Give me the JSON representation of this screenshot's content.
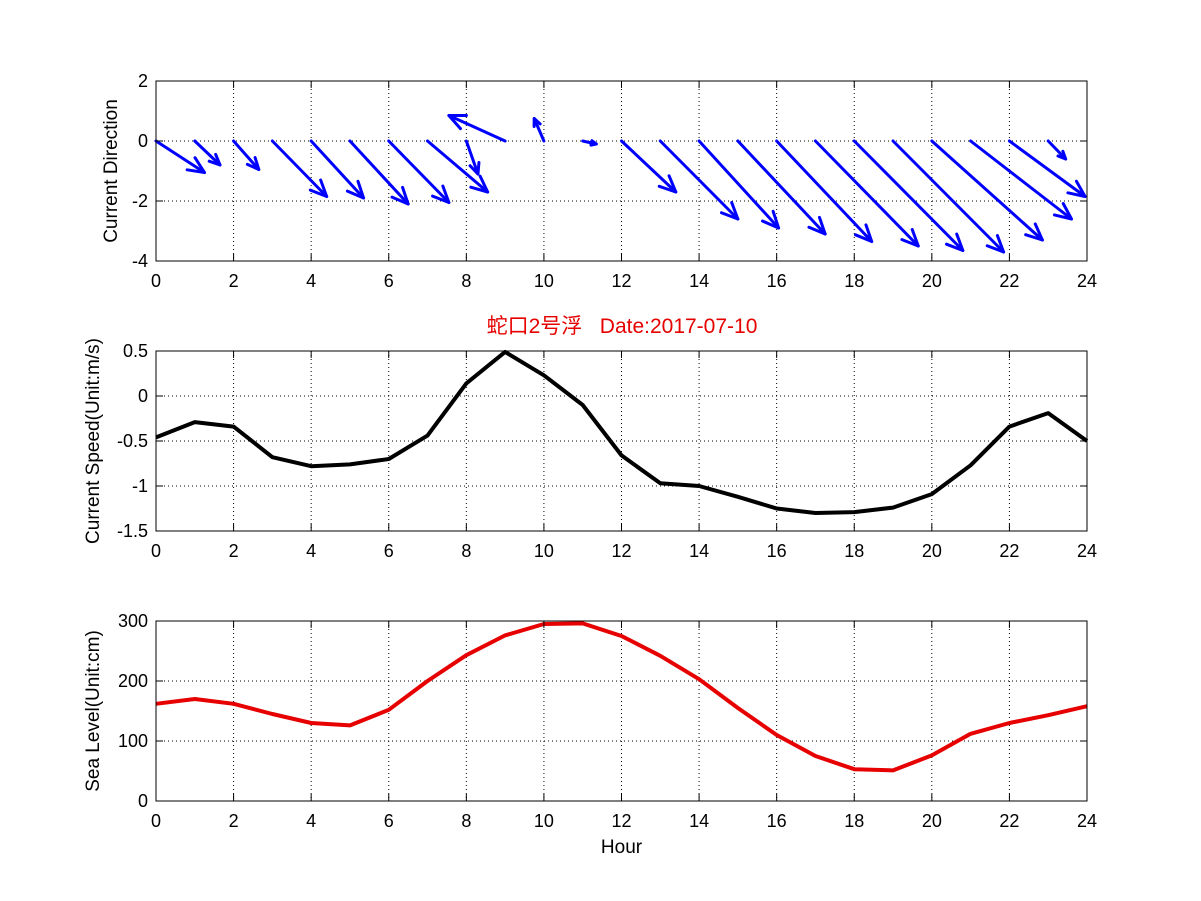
{
  "title": "蛇口2号浮   Date:2017-07-10",
  "colors": {
    "direction": "#0000ff",
    "speed": "#000000",
    "level": "#e60000",
    "title": "#e60000",
    "grid": "#000000"
  },
  "chart_data": [
    {
      "type": "quiver",
      "name": "direction",
      "ylabel": "Current Direction",
      "xlabel": "",
      "xlim": [
        0,
        24
      ],
      "ylim": [
        -4,
        2
      ],
      "xticks": [
        0,
        2,
        4,
        6,
        8,
        10,
        12,
        14,
        16,
        18,
        20,
        22,
        24
      ],
      "yticks": [
        -4,
        -2,
        0,
        2
      ],
      "grid": true,
      "arrows": [
        {
          "x": 0,
          "y": 0,
          "u": 1.25,
          "v": -1.05
        },
        {
          "x": 1,
          "y": 0,
          "u": 0.65,
          "v": -0.8
        },
        {
          "x": 2,
          "y": 0,
          "u": 0.65,
          "v": -0.95
        },
        {
          "x": 3,
          "y": 0,
          "u": 1.4,
          "v": -1.85
        },
        {
          "x": 4,
          "y": 0,
          "u": 1.35,
          "v": -1.9
        },
        {
          "x": 5,
          "y": 0,
          "u": 1.5,
          "v": -2.1
        },
        {
          "x": 6,
          "y": 0,
          "u": 1.55,
          "v": -2.05
        },
        {
          "x": 7,
          "y": 0,
          "u": 1.55,
          "v": -1.7
        },
        {
          "x": 8,
          "y": 0,
          "u": 0.3,
          "v": -1.1
        },
        {
          "x": 9,
          "y": 0,
          "u": -1.45,
          "v": 0.85
        },
        {
          "x": 10,
          "y": 0,
          "u": -0.25,
          "v": 0.75
        },
        {
          "x": 11,
          "y": 0,
          "u": 0.35,
          "v": -0.1
        },
        {
          "x": 12,
          "y": 0,
          "u": 1.4,
          "v": -1.7
        },
        {
          "x": 13,
          "y": 0,
          "u": 2.0,
          "v": -2.6
        },
        {
          "x": 14,
          "y": 0,
          "u": 2.05,
          "v": -2.9
        },
        {
          "x": 15,
          "y": 0,
          "u": 2.25,
          "v": -3.1
        },
        {
          "x": 16,
          "y": 0,
          "u": 2.45,
          "v": -3.35
        },
        {
          "x": 17,
          "y": 0,
          "u": 2.65,
          "v": -3.5
        },
        {
          "x": 18,
          "y": 0,
          "u": 2.8,
          "v": -3.65
        },
        {
          "x": 19,
          "y": 0,
          "u": 2.85,
          "v": -3.7
        },
        {
          "x": 20,
          "y": 0,
          "u": 2.85,
          "v": -3.3
        },
        {
          "x": 21,
          "y": 0,
          "u": 2.6,
          "v": -2.6
        },
        {
          "x": 22,
          "y": 0,
          "u": 1.95,
          "v": -1.85
        },
        {
          "x": 23,
          "y": 0,
          "u": 0.45,
          "v": -0.6
        }
      ]
    },
    {
      "type": "line",
      "name": "speed",
      "ylabel": "Current Speed(Unit:m/s)",
      "xlabel": "",
      "xlim": [
        0,
        24
      ],
      "ylim": [
        -1.5,
        0.5
      ],
      "xticks": [
        0,
        2,
        4,
        6,
        8,
        10,
        12,
        14,
        16,
        18,
        20,
        22,
        24
      ],
      "yticks": [
        -1.5,
        -1,
        -0.5,
        0,
        0.5
      ],
      "ytick_labels": [
        "-1.5",
        "-1",
        "-0.5",
        "0",
        "0.5"
      ],
      "grid": true,
      "x": [
        0,
        1,
        2,
        3,
        4,
        5,
        6,
        7,
        8,
        9,
        10,
        11,
        12,
        13,
        14,
        15,
        16,
        17,
        18,
        19,
        20,
        21,
        22,
        23,
        24
      ],
      "y": [
        -0.46,
        -0.29,
        -0.34,
        -0.68,
        -0.78,
        -0.76,
        -0.7,
        -0.44,
        0.14,
        0.49,
        0.23,
        -0.1,
        -0.66,
        -0.97,
        -1.0,
        -1.12,
        -1.25,
        -1.3,
        -1.29,
        -1.24,
        -1.09,
        -0.77,
        -0.34,
        -0.19,
        -0.5
      ]
    },
    {
      "type": "line",
      "name": "level",
      "ylabel": "Sea Level(Unit:cm)",
      "xlabel": "Hour",
      "xlim": [
        0,
        24
      ],
      "ylim": [
        0,
        300
      ],
      "xticks": [
        0,
        2,
        4,
        6,
        8,
        10,
        12,
        14,
        16,
        18,
        20,
        22,
        24
      ],
      "yticks": [
        0,
        100,
        200,
        300
      ],
      "grid": true,
      "x": [
        0,
        1,
        2,
        3,
        4,
        5,
        6,
        7,
        8,
        9,
        10,
        11,
        12,
        13,
        14,
        15,
        16,
        17,
        18,
        19,
        20,
        21,
        22,
        23,
        24
      ],
      "y": [
        162,
        170,
        162,
        145,
        130,
        126,
        152,
        200,
        243,
        276,
        295,
        296,
        275,
        242,
        203,
        155,
        110,
        75,
        53,
        51,
        76,
        112,
        130,
        143,
        158
      ]
    }
  ]
}
